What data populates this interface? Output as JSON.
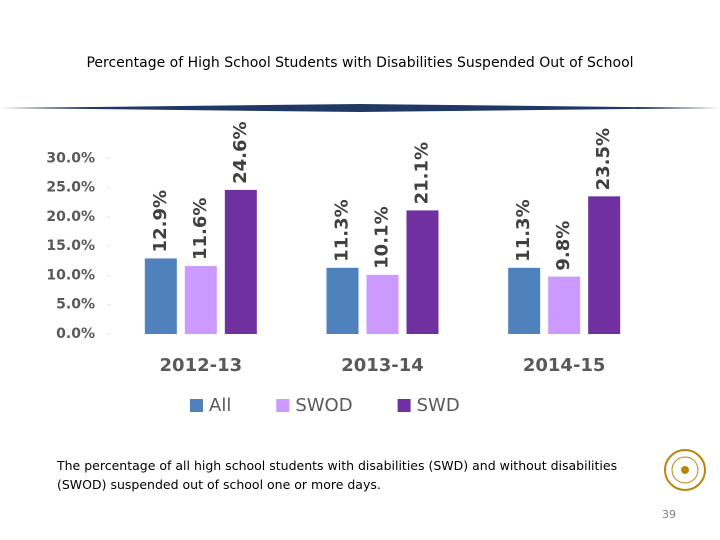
{
  "chart_data": {
    "type": "bar",
    "title": "Percentage of High School Students with Disabilities Suspended Out of School",
    "categories": [
      "2012-13",
      "2013-14",
      "2014-15"
    ],
    "series": [
      {
        "name": "All",
        "color": "#4f81bd",
        "values": [
          12.9,
          11.3,
          11.3
        ],
        "value_labels": [
          "12.9%",
          "11.3%",
          "11.3%"
        ]
      },
      {
        "name": "SWOD",
        "color": "#cc99ff",
        "values": [
          11.6,
          10.1,
          9.8
        ],
        "value_labels": [
          "11.6%",
          "10.1%",
          "9.8%"
        ]
      },
      {
        "name": "SWD",
        "color": "#7030a0",
        "values": [
          24.6,
          21.1,
          23.5
        ],
        "value_labels": [
          "24.6%",
          "21.1%",
          "23.5%"
        ]
      }
    ],
    "ylim": [
      0,
      35
    ],
    "yticks": [
      {
        "value": 0,
        "label": "0.0%"
      },
      {
        "value": 5,
        "label": "5.0%"
      },
      {
        "value": 10,
        "label": "10.0%"
      },
      {
        "value": 15,
        "label": "15.0%"
      },
      {
        "value": 20,
        "label": "20.0%"
      },
      {
        "value": 25,
        "label": "25.0%"
      },
      {
        "value": 30,
        "label": "30.0%"
      }
    ],
    "legend": "bottom"
  },
  "caption": "The percentage of all high school students with disabilities (SWD) and without disabilities (SWOD) suspended out of school one or more days.",
  "page_number": "39"
}
